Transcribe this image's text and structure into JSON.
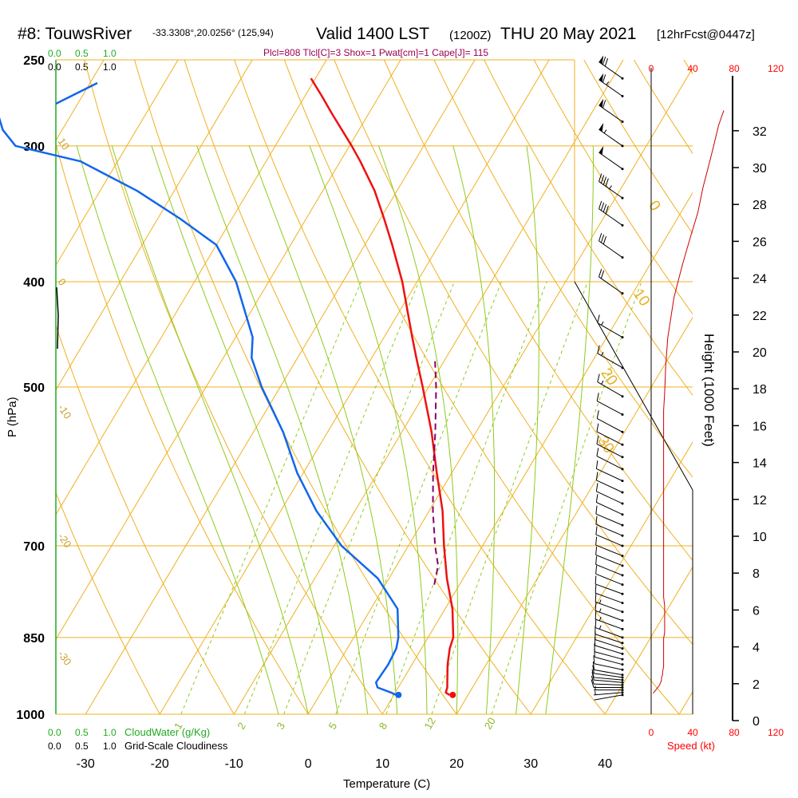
{
  "header": {
    "station": "#8: TouwsRiver",
    "location": "-33.3308°,20.0256° (125,94)",
    "valid": "Valid 1400 LST",
    "zulu": "(1200Z)",
    "date": "THU 20 May 2021",
    "forecast": "[12hrFcst@0447z]",
    "indices": "Plcl=808 Tlcl[C]=3 Shox=1 Pwat[cm]=1 Cape[J]= 115"
  },
  "colors": {
    "isobar": "#f0b020",
    "isotherm": "#f0b020",
    "dry_adiabat": "#f0b020",
    "moist_adiabat": "#8ecb1e",
    "mixing_ratio": "#8ecb1e",
    "temperature": "#ee1111",
    "dewpoint": "#1166ee",
    "parcel": "#880066",
    "cloudwater": "#22aa22",
    "speed": "#cc0000"
  },
  "chart_data": {
    "type": "skew-t",
    "xlabel": "Temperature (C)",
    "ylabel": "P (hPa)",
    "x_ticks": [
      -30,
      -20,
      -10,
      0,
      10,
      20,
      30,
      40
    ],
    "p_ticks": [
      250,
      300,
      400,
      500,
      700,
      850,
      1000
    ],
    "xlim": [
      -34,
      54
    ],
    "plim": [
      1000,
      250
    ],
    "isotherm_labels": [
      {
        "value": "-30",
        "p": 880,
        "t": -34
      },
      {
        "value": "-20",
        "p": 686,
        "t": -34
      },
      {
        "value": "-10",
        "p": 522,
        "t": -34
      },
      {
        "value": "0",
        "p": 400,
        "t": -34
      },
      {
        "value": "10",
        "p": 297,
        "t": -34
      },
      {
        "value": "0",
        "p": 340,
        "t": 5
      },
      {
        "value": "10",
        "p": 410,
        "t": 10
      },
      {
        "value": "20",
        "p": 485,
        "t": 12
      },
      {
        "value": "30",
        "p": 560,
        "t": 17
      }
    ],
    "mixing_ratio_labels": [
      "1",
      "2",
      "3",
      "5",
      "8",
      "12",
      "20"
    ],
    "mixing_ratio_values": [
      1,
      2,
      3,
      5,
      8,
      12,
      20
    ],
    "dry_adiabat_thetas": [
      -20,
      -10,
      0,
      10,
      20,
      30,
      40,
      50,
      60,
      70,
      80,
      90,
      100,
      110,
      120,
      130,
      140
    ],
    "moist_adiabat_surface_temps": [
      -4,
      0,
      4,
      8,
      12,
      16,
      20,
      24,
      28,
      32
    ],
    "temperature": {
      "p": [
        960,
        955,
        945,
        935,
        900,
        870,
        850,
        800,
        750,
        700,
        650,
        600,
        550,
        500,
        470,
        450,
        400,
        370,
        350,
        330,
        310,
        300,
        290,
        280,
        270,
        260
      ],
      "t": [
        17.5,
        16.8,
        16.6,
        16.2,
        14.8,
        13.8,
        13.4,
        11.0,
        7.8,
        4.8,
        1.8,
        -2.0,
        -6.0,
        -10.8,
        -14.0,
        -16.2,
        -22.0,
        -26.3,
        -29.5,
        -33.0,
        -37.3,
        -39.7,
        -42.3,
        -45.0,
        -47.7,
        -50.6
      ]
    },
    "dewpoint": {
      "p": [
        960,
        955,
        945,
        935,
        900,
        870,
        850,
        800,
        750,
        700,
        650,
        600,
        550,
        500,
        470,
        450,
        400,
        370,
        350,
        330,
        310,
        300,
        290,
        280,
        270
      ],
      "t": [
        10.3,
        9.4,
        7.2,
        6.6,
        6.8,
        6.6,
        6.0,
        3.6,
        -1.5,
        -9.0,
        -15.2,
        -20.8,
        -26.0,
        -32.5,
        -36.2,
        -37.7,
        -44.4,
        -50.0,
        -57.0,
        -65.0,
        -75.0,
        -85.0,
        -88.0,
        -90.0,
        -92.0
      ]
    },
    "parcel": {
      "p": [
        760,
        730,
        700,
        650,
        600,
        550,
        500,
        470
      ],
      "t": [
        6.6,
        5.6,
        3.6,
        0.5,
        -2.5,
        -5.5,
        -9.0,
        -11.5
      ]
    },
    "surface": {
      "p": 960,
      "t": 17.5,
      "td": 10.3
    },
    "cloudwater_scale": [
      "0.0",
      "0.5",
      "1.0"
    ],
    "cloudwater_label": "CloudWater (g/Kg)",
    "cloudiness_scale": [
      "0.0",
      "0.5",
      "1.0"
    ],
    "cloudiness_label": "Grid-Scale Cloudiness",
    "wind": {
      "p": [
        960,
        955,
        950,
        945,
        940,
        935,
        930,
        925,
        920,
        910,
        900,
        890,
        880,
        870,
        860,
        850,
        835,
        820,
        805,
        790,
        775,
        760,
        745,
        730,
        715,
        700,
        685,
        670,
        655,
        640,
        625,
        610,
        595,
        580,
        565,
        550,
        530,
        510,
        480,
        450,
        410,
        380,
        355,
        335,
        315,
        300,
        285,
        270,
        260
      ],
      "speed_kt": [
        2,
        4,
        6,
        8,
        9,
        10,
        10,
        11,
        11,
        12,
        12,
        12,
        12,
        12,
        12,
        13,
        13,
        13,
        13,
        12,
        12,
        12,
        12,
        12,
        12,
        12,
        12,
        12,
        12,
        12,
        12,
        12,
        12,
        12,
        12,
        12,
        12,
        13,
        14,
        16,
        22,
        30,
        38,
        45,
        50,
        55,
        60,
        65,
        70
      ],
      "dir_deg": [
        260,
        265,
        270,
        270,
        272,
        275,
        275,
        278,
        280,
        282,
        285,
        285,
        287,
        288,
        288,
        290,
        290,
        290,
        290,
        290,
        290,
        292,
        292,
        292,
        292,
        293,
        293,
        293,
        295,
        295,
        295,
        295,
        297,
        297,
        297,
        298,
        298,
        300,
        300,
        300,
        305,
        305,
        305,
        305,
        305,
        305,
        305,
        305,
        305
      ]
    },
    "speed_axis": {
      "ticks_top": [
        "0",
        "40",
        "80",
        "120"
      ],
      "ticks_bottom": [
        "0",
        "40",
        "80",
        "120"
      ],
      "label": "Speed (kt)",
      "max": 120
    },
    "height_axis": {
      "label": "Height (1000 Feet)",
      "ticks": [
        0,
        2,
        4,
        6,
        8,
        10,
        12,
        14,
        16,
        18,
        20,
        22,
        24,
        26,
        28,
        30,
        32
      ],
      "max": 33
    }
  }
}
